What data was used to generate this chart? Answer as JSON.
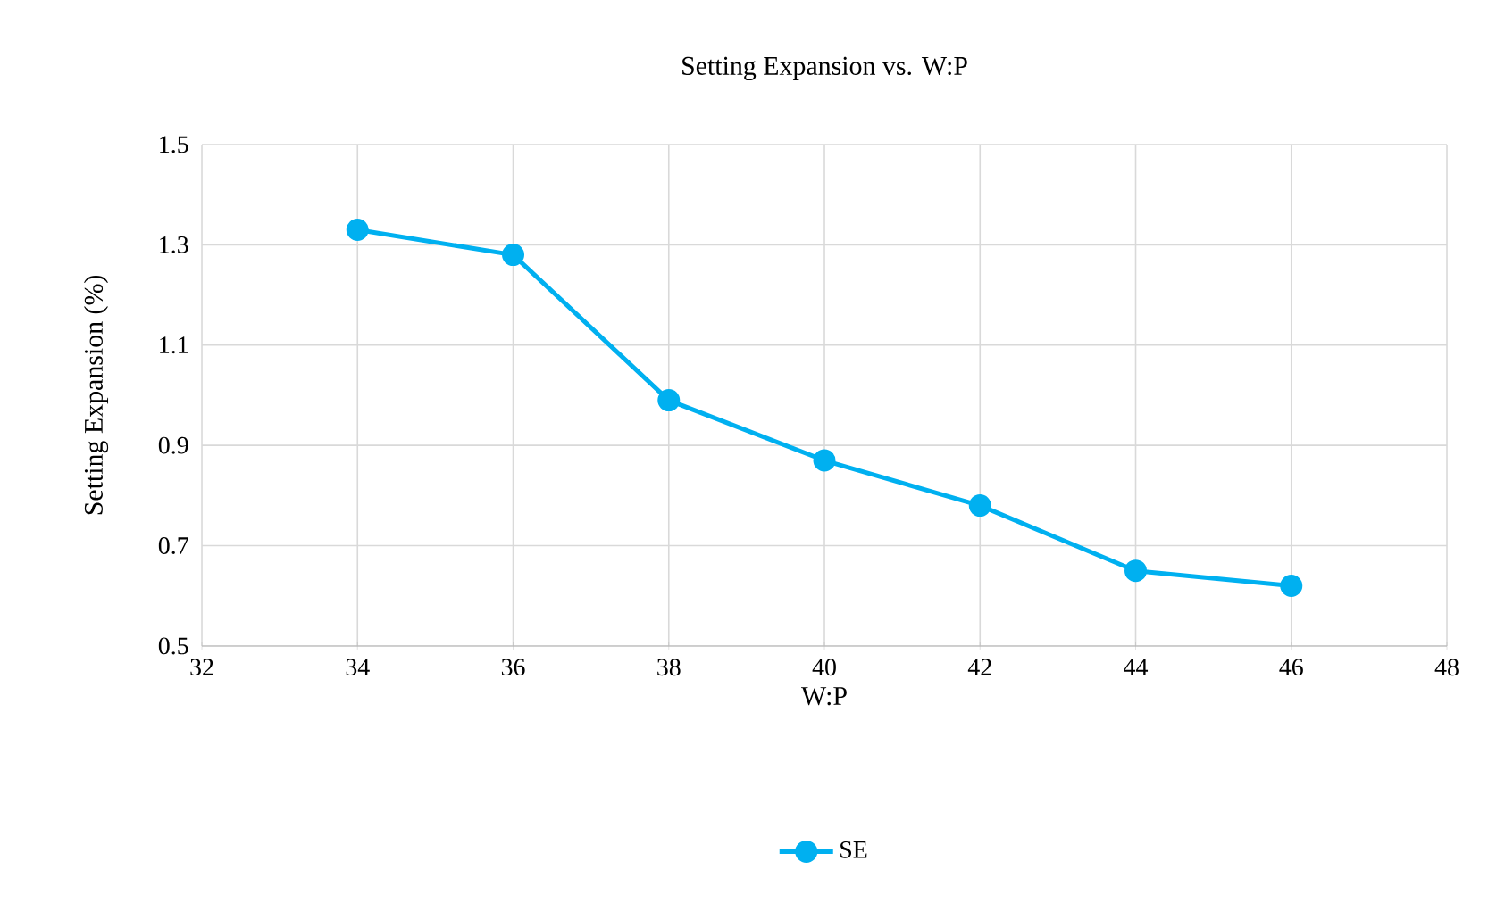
{
  "chart_data": {
    "type": "line",
    "title": "Setting Expansion vs. W:P",
    "xlabel": "W:P",
    "ylabel": "Setting Expansion (%)",
    "x": [
      34,
      36,
      38,
      40,
      42,
      44,
      46
    ],
    "series": [
      {
        "name": "SE",
        "color": "#00b0f0",
        "values": [
          1.33,
          1.28,
          0.99,
          0.87,
          0.78,
          0.65,
          0.62
        ]
      }
    ],
    "xlim": [
      32,
      48
    ],
    "ylim": [
      0.5,
      1.5
    ],
    "xticks": [
      32,
      34,
      36,
      38,
      40,
      42,
      44,
      46,
      48
    ],
    "yticks": [
      0.5,
      0.7,
      0.9,
      1.1,
      1.3,
      1.5
    ],
    "grid": true,
    "legend": "bottom",
    "marker": "circle",
    "line_style": "solid"
  }
}
